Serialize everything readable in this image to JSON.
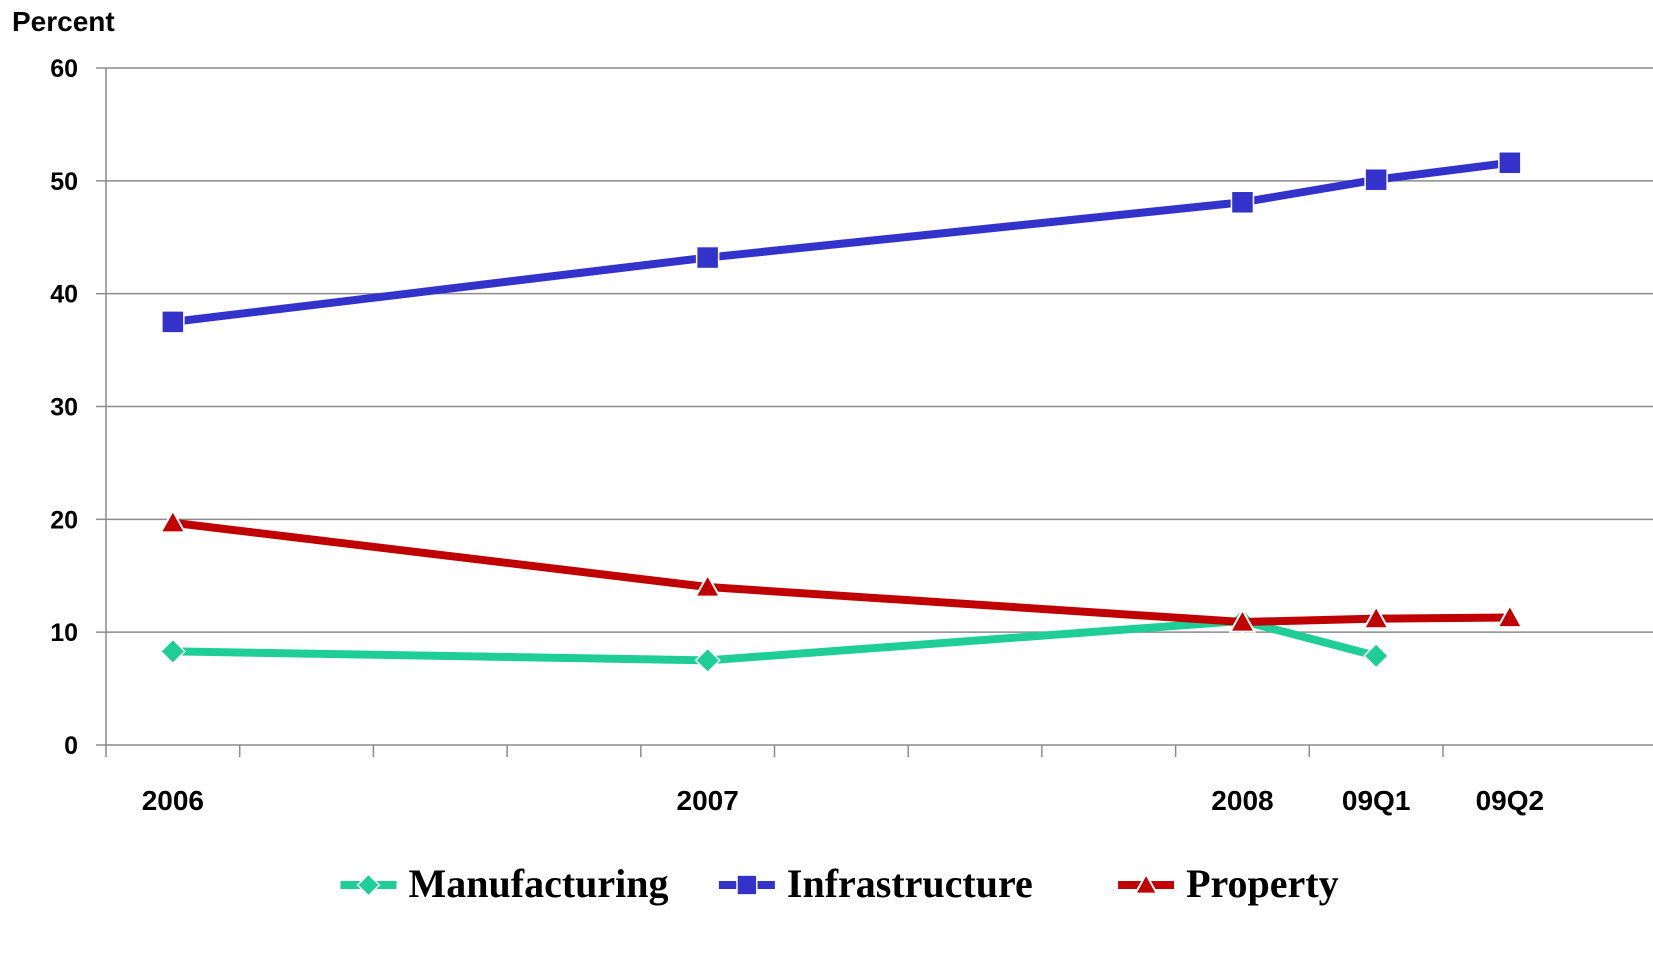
{
  "chart_data": {
    "type": "line",
    "title": "",
    "xlabel": "",
    "ylabel": "Percent",
    "ylim": [
      0,
      60
    ],
    "yticks": [
      0,
      10,
      20,
      30,
      40,
      50,
      60
    ],
    "grid": true,
    "legend_position": "bottom",
    "categories": [
      "2006",
      "2007",
      "2008",
      "09Q1",
      "09Q2"
    ],
    "series": [
      {
        "name": "Manufacturing",
        "color": "#1fce96",
        "marker": "diamond",
        "values": [
          8.3,
          7.5,
          11.0,
          7.9,
          null
        ]
      },
      {
        "name": "Infrastructure",
        "color": "#3333cc",
        "marker": "square",
        "values": [
          37.5,
          43.2,
          48.1,
          50.1,
          51.6
        ]
      },
      {
        "name": "Property",
        "color": "#c00000",
        "marker": "triangle",
        "values": [
          19.7,
          14.0,
          10.9,
          11.2,
          11.3
        ]
      }
    ]
  }
}
